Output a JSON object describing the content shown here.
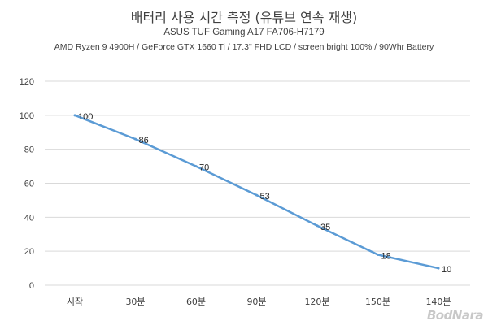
{
  "chart_data": {
    "type": "line",
    "title": "배터리 사용 시간 측정 (유튜브 연속 재생)",
    "subtitle": "ASUS TUF Gaming A17 FA706-H7179",
    "specs": "AMD Ryzen 9 4900H / GeForce GTX 1660 Ti / 17.3\" FHD LCD / screen bright 100% / 90Whr Battery",
    "categories": [
      "시작",
      "30분",
      "60분",
      "90분",
      "120분",
      "150분",
      "140분"
    ],
    "series": [
      {
        "values": [
          100,
          86,
          70,
          53,
          35,
          18,
          10
        ],
        "color": "#5b9bd5"
      }
    ],
    "data_labels": [
      "100",
      "86",
      "70",
      "53",
      "35",
      "18",
      "10"
    ],
    "y_ticks": [
      0,
      20,
      40,
      60,
      80,
      100,
      120
    ],
    "ylim": [
      0,
      120
    ],
    "grid": true,
    "legend": "none"
  },
  "watermark": "BodNara"
}
